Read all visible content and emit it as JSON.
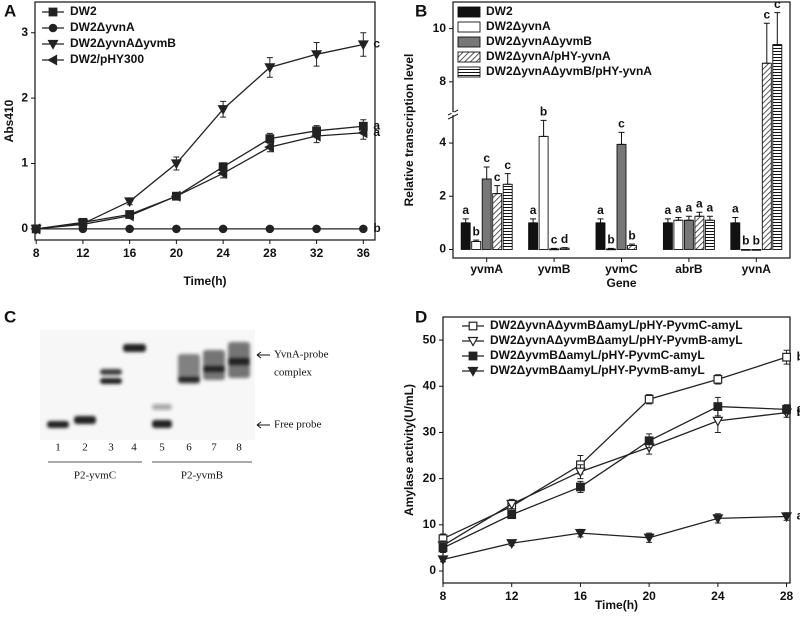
{
  "chart_data": [
    {
      "type": "line",
      "panel_label": "A",
      "x_label": "Time(h)",
      "y_label": "Abs410",
      "x": [
        8,
        12,
        16,
        20,
        24,
        28,
        32,
        36
      ],
      "xlim": [
        7.9,
        37
      ],
      "xticks": [
        8,
        12,
        16,
        20,
        24,
        28,
        32,
        36
      ],
      "ylim": [
        -0.17,
        3.47
      ],
      "yticks": [
        0,
        1,
        2,
        3
      ],
      "series": [
        {
          "name": "DW2",
          "color": "#222222",
          "marker": "square",
          "values": [
            0,
            0.1,
            0.22,
            0.5,
            0.95,
            1.38,
            1.5,
            1.57
          ],
          "errors": [
            0,
            0.03,
            0.04,
            0.05,
            0.06,
            0.08,
            0.08,
            0.1
          ],
          "label": "a"
        },
        {
          "name": "DW2ΔyvnA",
          "color": "#222222",
          "marker": "circle",
          "values": [
            0,
            0,
            0,
            0,
            0,
            0,
            0,
            0
          ],
          "errors": [
            0,
            0,
            0,
            0,
            0,
            0,
            0,
            0
          ],
          "label": "b"
        },
        {
          "name": "DW2ΔyvnAΔyvmB",
          "color": "#222222",
          "marker": "triangle-down",
          "values": [
            0,
            0.08,
            0.42,
            1.0,
            1.83,
            2.47,
            2.67,
            2.82
          ],
          "errors": [
            0,
            0.04,
            0.05,
            0.1,
            0.12,
            0.15,
            0.18,
            0.18
          ],
          "label": "c"
        },
        {
          "name": "DW2/pHY300",
          "color": "#222222",
          "marker": "triangle-left",
          "values": [
            0,
            0.07,
            0.2,
            0.5,
            0.85,
            1.25,
            1.42,
            1.47
          ],
          "errors": [
            0,
            0.03,
            0.03,
            0.05,
            0.07,
            0.07,
            0.1,
            0.1
          ],
          "label": "a"
        }
      ]
    },
    {
      "type": "bar",
      "panel_label": "B",
      "x_label": "Gene",
      "y_label": "Relative transcription level",
      "categories": [
        "yvmA",
        "yvmB",
        "yvmC",
        "abrB",
        "yvnA"
      ],
      "ylim": [
        -0.32,
        11
      ],
      "y_break": [
        5.2,
        6.9
      ],
      "yticks": [
        0,
        2,
        4,
        8,
        10
      ],
      "series": [
        {
          "name": "DW2",
          "color": "#111111",
          "hatch": null,
          "values": [
            1,
            1,
            1,
            1,
            1
          ],
          "errors": [
            0.15,
            0.15,
            0.15,
            0.15,
            0.2
          ],
          "labels": [
            "a",
            "a",
            "a",
            "a",
            "a"
          ]
        },
        {
          "name": "DW2ΔyvnA",
          "color": "#ffffff",
          "hatch": null,
          "values": [
            0.3,
            4.25,
            0.02,
            1.1,
            0
          ],
          "errors": [
            0.05,
            0.6,
            0.02,
            0.1,
            0
          ],
          "labels": [
            "b",
            "b",
            "b",
            "a",
            "b"
          ]
        },
        {
          "name": "DW2ΔyvnAΔyvmB",
          "color": "#777777",
          "hatch": null,
          "values": [
            2.65,
            0.02,
            3.95,
            1.1,
            0
          ],
          "errors": [
            0.45,
            0.02,
            0.45,
            0.15,
            0
          ],
          "labels": [
            "c",
            "c",
            "c",
            "a",
            "b"
          ]
        },
        {
          "name": "DW2ΔyvnA/pHY-yvnA",
          "color": "#ffffff",
          "hatch": "diagonal",
          "values": [
            2.1,
            0.05,
            0.15,
            1.25,
            8.7
          ],
          "errors": [
            0.3,
            0.02,
            0.05,
            0.15,
            1.5
          ],
          "labels": [
            "c",
            "d",
            "b",
            "a",
            "c"
          ]
        },
        {
          "name": "DW2ΔyvnAΔyvmB/pHY-yvnA",
          "color": "#ffffff",
          "hatch": "horizontal",
          "values": [
            2.45,
            null,
            null,
            1.1,
            9.4
          ],
          "errors": [
            0.4,
            null,
            null,
            0.15,
            1.2
          ],
          "labels": [
            "c",
            null,
            null,
            "a",
            "c"
          ]
        }
      ]
    },
    {
      "type": "line",
      "panel_label": "D",
      "x_label": "Time(h)",
      "y_label": "Amylase activity(U/mL)",
      "x": [
        8,
        12,
        16,
        20,
        24,
        28
      ],
      "xlim": [
        8,
        28.2
      ],
      "xticks": [
        8,
        12,
        16,
        20,
        24,
        28
      ],
      "ylim": [
        -2.6,
        55
      ],
      "yticks": [
        0,
        10,
        20,
        30,
        40,
        50
      ],
      "series": [
        {
          "name": "DW2ΔyvnAΔyvmBΔamyL/pHY-PyvmC-amyL",
          "color": "#222222",
          "marker": "square-open",
          "values": [
            7,
            14,
            23,
            37.2,
            41.5,
            46.3
          ],
          "errors": [
            1,
            1,
            2,
            1,
            1,
            1.5
          ],
          "label": "b"
        },
        {
          "name": "DW2ΔyvnAΔyvmBΔamyL/pHY-PyvmB-amyL",
          "color": "#222222",
          "marker": "triangle-down-open",
          "values": [
            5.5,
            14.5,
            21.5,
            26.8,
            32.5,
            34.3
          ],
          "errors": [
            1,
            1,
            1.5,
            1.5,
            2.5,
            1
          ],
          "label": "b"
        },
        {
          "name": "DW2ΔyvmBΔamyL/pHY-PyvmC-amyL",
          "color": "#222222",
          "marker": "square",
          "values": [
            5,
            12.2,
            18.2,
            28.2,
            35.6,
            35
          ],
          "errors": [
            1,
            0.5,
            1.2,
            1.5,
            2,
            1
          ],
          "label": "a"
        },
        {
          "name": "DW2ΔyvmBΔamyL/pHY-PyvmB-amyL",
          "color": "#222222",
          "marker": "triangle-down",
          "values": [
            2.5,
            6,
            8.2,
            7.2,
            11.4,
            11.8
          ],
          "errors": [
            0.5,
            0.5,
            0.8,
            1,
            1,
            0.8
          ],
          "label": "a"
        }
      ]
    }
  ],
  "gel": {
    "panel_label": "C",
    "lanes": [
      "1",
      "2",
      "3",
      "4",
      "5",
      "6",
      "7",
      "8"
    ],
    "groups": [
      "P2-yvmC",
      "P2-yvmB"
    ],
    "complex_label": [
      "YvnA-probe",
      "complex"
    ],
    "free_label": "Free probe"
  }
}
